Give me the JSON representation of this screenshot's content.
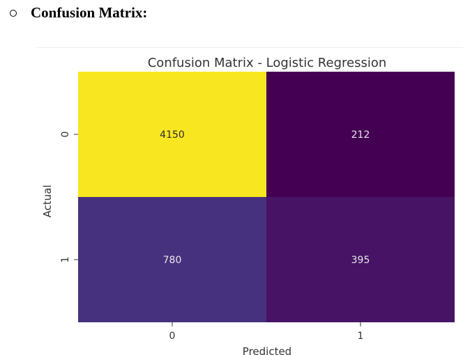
{
  "document": {
    "bullet_symbol": "o",
    "heading": "Confusion Matrix:"
  },
  "chart_data": {
    "type": "heatmap",
    "title": "Confusion Matrix - Logistic Regression",
    "xlabel": "Predicted",
    "ylabel": "Actual",
    "x_categories": [
      "0",
      "1"
    ],
    "y_categories": [
      "0",
      "1"
    ],
    "values": [
      [
        4150,
        212
      ],
      [
        780,
        395
      ]
    ],
    "colormap": "viridis",
    "colorbar": false,
    "cell_colors": [
      [
        "#f8e621",
        "#440154"
      ],
      [
        "#46317e",
        "#461365"
      ]
    ],
    "annotation_colors": [
      [
        "#2b2b2b",
        "#e8e8e8"
      ],
      [
        "#e8e8e8",
        "#e8e8e8"
      ]
    ]
  }
}
